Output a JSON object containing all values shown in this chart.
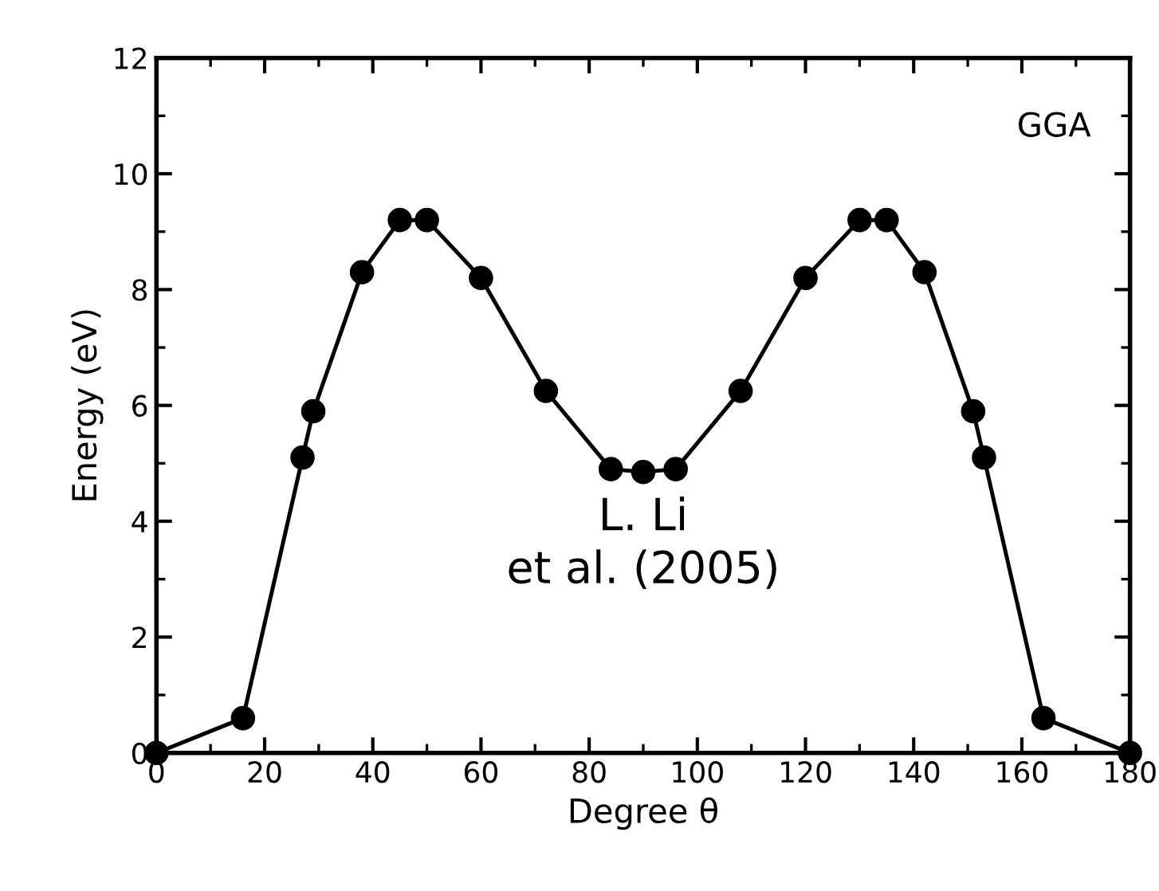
{
  "chart_data": {
    "type": "line",
    "xlabel": "Degree θ",
    "ylabel": "Energy (eV)",
    "annotations": [
      "GGA",
      "L. Li\net al. (2005)"
    ],
    "x": [
      0,
      16,
      27,
      29,
      38,
      45,
      50,
      60,
      72,
      84,
      90,
      96,
      108,
      120,
      130,
      135,
      142,
      151,
      153,
      164,
      180
    ],
    "series": [
      {
        "color": "#000000",
        "values": [
          0,
          0.6,
          5.1,
          5.9,
          8.3,
          9.2,
          9.2,
          8.2,
          6.25,
          4.9,
          4.85,
          4.9,
          6.25,
          8.2,
          9.2,
          9.2,
          8.3,
          5.9,
          5.1,
          0.6,
          0
        ]
      }
    ],
    "xlim": [
      0,
      180
    ],
    "xticks": [
      0,
      20,
      40,
      60,
      80,
      100,
      120,
      140,
      160,
      180
    ],
    "ylim": [
      0,
      12
    ],
    "yticks": [
      0,
      2,
      4,
      6,
      8,
      10,
      12
    ],
    "marker": "circle",
    "line_style": "solid",
    "grid": false,
    "legend": false
  }
}
